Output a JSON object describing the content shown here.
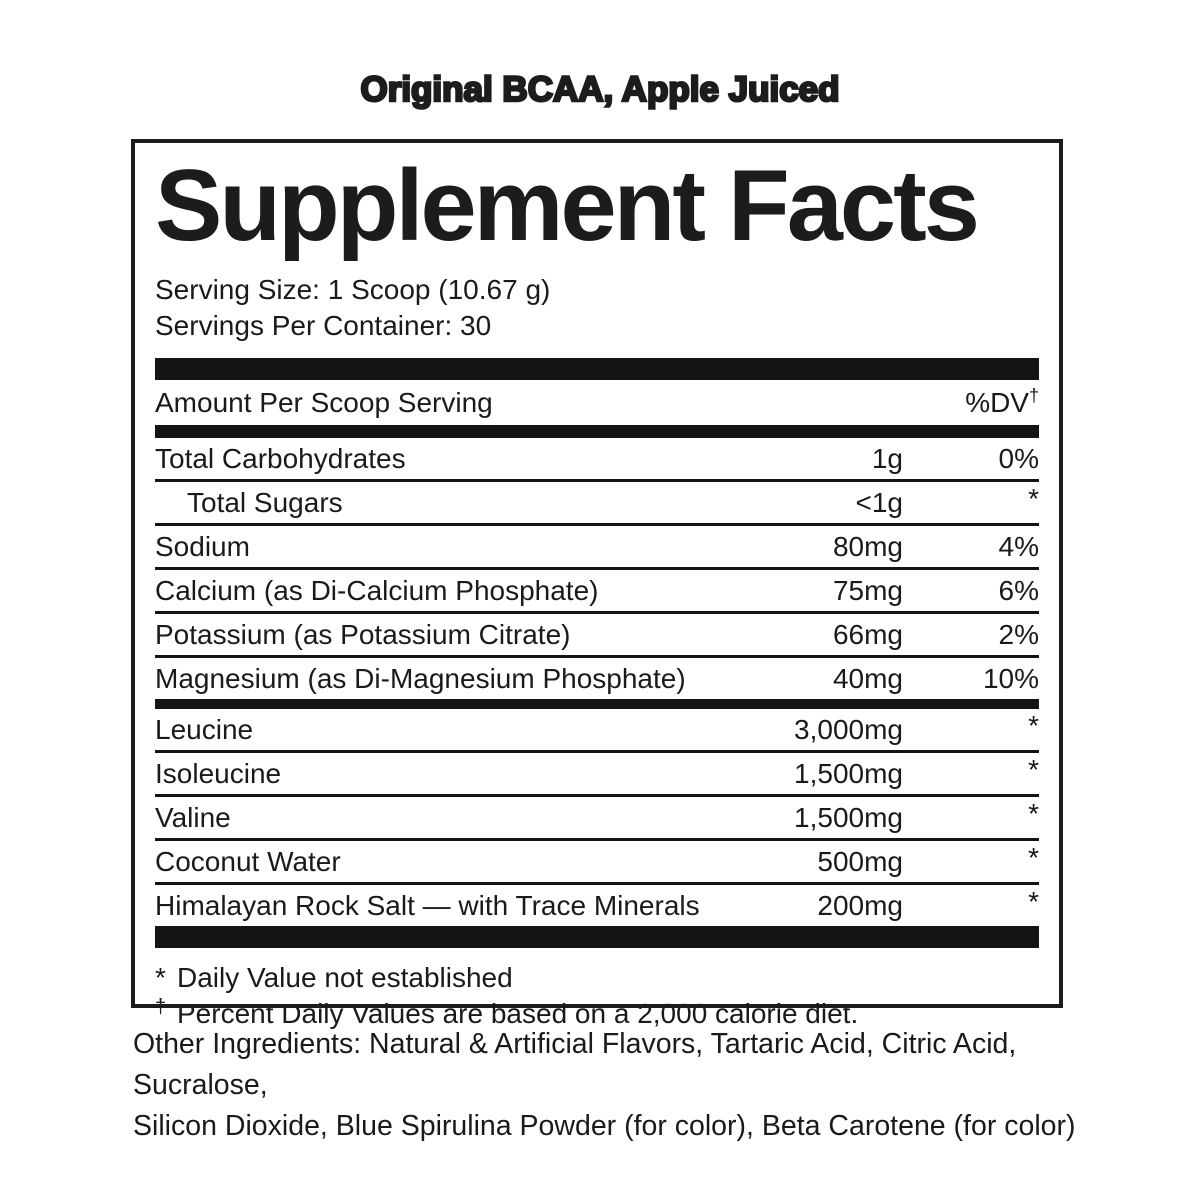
{
  "colors": {
    "ink": "#1a1a1a",
    "background": "#ffffff"
  },
  "header": {
    "product_title": "Original BCAA, Apple Juiced"
  },
  "label": {
    "title": "Supplement Facts",
    "serving_size": "Serving Size: 1 Scoop (10.67 g)",
    "servings_per_container": "Servings Per Container: 30",
    "columns": {
      "amount_label": "Amount Per Scoop Serving",
      "dv_label": "%DV",
      "dv_superscript": "†"
    },
    "rows": [
      {
        "name": "Total Carbohydrates",
        "amount": "1g",
        "dv": "0%"
      },
      {
        "name": "Total Sugars",
        "amount": "<1g",
        "dv": "*"
      },
      {
        "name": "Sodium",
        "amount": "80mg",
        "dv": "4%"
      },
      {
        "name": "Calcium (as Di-Calcium Phosphate)",
        "amount": "75mg",
        "dv": "6%"
      },
      {
        "name": "Potassium (as Potassium Citrate)",
        "amount": "66mg",
        "dv": "2%"
      },
      {
        "name": "Magnesium (as Di-Magnesium Phosphate)",
        "amount": "40mg",
        "dv": "10%"
      },
      {
        "name": "Leucine",
        "amount": "3,000mg",
        "dv": "*"
      },
      {
        "name": "Isoleucine",
        "amount": "1,500mg",
        "dv": "*"
      },
      {
        "name": "Valine",
        "amount": "1,500mg",
        "dv": "*"
      },
      {
        "name": "Coconut Water",
        "amount": "500mg",
        "dv": "*"
      },
      {
        "name": "Himalayan Rock Salt — with Trace Minerals",
        "amount": "200mg",
        "dv": "*"
      }
    ],
    "footnotes": [
      {
        "marker": "*",
        "text": "Daily Value not established"
      },
      {
        "marker": "†",
        "text": "Percent Daily Values are based on a 2,000 calorie diet."
      }
    ]
  },
  "other_ingredients": {
    "lines": [
      "Other Ingredients: Natural & Artificial Flavors, Tartaric Acid, Citric Acid, Sucralose,",
      "Silicon Dioxide, Blue Spirulina Powder (for color), Beta Carotene (for color)"
    ]
  }
}
